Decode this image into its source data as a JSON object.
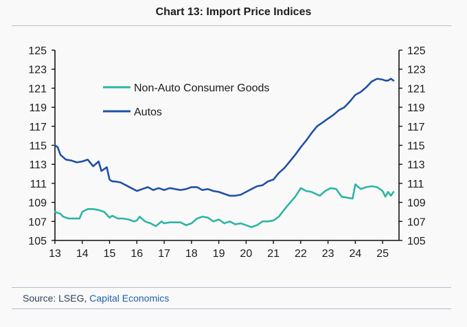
{
  "chart_data": {
    "type": "line",
    "title": "Chart 13: Import Price Indices",
    "xlabel": "",
    "ylabel": "",
    "x_ticks": [
      "13",
      "14",
      "15",
      "16",
      "17",
      "18",
      "19",
      "20",
      "21",
      "22",
      "23",
      "24",
      "25"
    ],
    "xlim": [
      2013.0,
      2025.6
    ],
    "ylim": [
      105,
      125
    ],
    "y_ticks": [
      105,
      107,
      109,
      111,
      113,
      115,
      117,
      119,
      121,
      123,
      125
    ],
    "legend_position": "top-left",
    "series": [
      {
        "name": "Non-Auto Consumer Goods",
        "color": "#2bb5a3",
        "x": [
          2013.0,
          2013.1,
          2013.2,
          2013.3,
          2013.5,
          2013.7,
          2013.9,
          2014.0,
          2014.2,
          2014.4,
          2014.6,
          2014.8,
          2015.0,
          2015.1,
          2015.3,
          2015.5,
          2015.7,
          2015.9,
          2016.0,
          2016.1,
          2016.3,
          2016.5,
          2016.7,
          2016.9,
          2017.0,
          2017.2,
          2017.4,
          2017.6,
          2017.8,
          2018.0,
          2018.2,
          2018.4,
          2018.6,
          2018.8,
          2019.0,
          2019.2,
          2019.4,
          2019.6,
          2019.8,
          2020.0,
          2020.2,
          2020.4,
          2020.6,
          2020.8,
          2021.0,
          2021.2,
          2021.5,
          2021.8,
          2022.0,
          2022.2,
          2022.4,
          2022.7,
          2022.9,
          2023.1,
          2023.3,
          2023.5,
          2023.7,
          2023.9,
          2024.0,
          2024.2,
          2024.4,
          2024.6,
          2024.8,
          2025.0,
          2025.1,
          2025.2,
          2025.3,
          2025.4
        ],
        "values": [
          108.0,
          107.9,
          107.8,
          107.5,
          107.3,
          107.3,
          107.3,
          108.0,
          108.3,
          108.3,
          108.2,
          108.0,
          107.4,
          107.6,
          107.3,
          107.3,
          107.2,
          107.0,
          107.1,
          107.5,
          107.0,
          106.8,
          106.5,
          107.0,
          106.8,
          106.9,
          106.9,
          106.9,
          106.6,
          106.8,
          107.3,
          107.5,
          107.4,
          107.0,
          107.2,
          106.8,
          107.0,
          106.7,
          106.8,
          106.6,
          106.4,
          106.6,
          107.0,
          107.0,
          107.1,
          107.5,
          108.6,
          109.6,
          110.5,
          110.2,
          110.1,
          109.7,
          110.2,
          110.5,
          110.4,
          109.6,
          109.5,
          109.4,
          110.9,
          110.4,
          110.6,
          110.7,
          110.6,
          110.2,
          109.6,
          110.1,
          109.7,
          110.1
        ]
      },
      {
        "name": "Autos",
        "color": "#1f4fa6",
        "x": [
          2013.0,
          2013.1,
          2013.2,
          2013.4,
          2013.6,
          2013.8,
          2014.0,
          2014.2,
          2014.4,
          2014.6,
          2014.7,
          2014.9,
          2015.0,
          2015.1,
          2015.2,
          2015.4,
          2015.6,
          2015.8,
          2016.0,
          2016.2,
          2016.4,
          2016.6,
          2016.8,
          2017.0,
          2017.2,
          2017.4,
          2017.6,
          2017.8,
          2018.0,
          2018.2,
          2018.4,
          2018.6,
          2018.8,
          2019.0,
          2019.2,
          2019.4,
          2019.6,
          2019.8,
          2020.0,
          2020.2,
          2020.4,
          2020.6,
          2020.8,
          2021.0,
          2021.2,
          2021.4,
          2021.6,
          2021.8,
          2022.0,
          2022.2,
          2022.4,
          2022.6,
          2022.8,
          2023.0,
          2023.2,
          2023.4,
          2023.6,
          2023.8,
          2024.0,
          2024.2,
          2024.4,
          2024.6,
          2024.8,
          2025.0,
          2025.1,
          2025.2,
          2025.3,
          2025.4
        ],
        "values": [
          115.0,
          114.8,
          114.0,
          113.5,
          113.4,
          113.2,
          113.3,
          113.5,
          112.8,
          113.3,
          112.3,
          112.7,
          111.4,
          111.2,
          111.2,
          111.1,
          110.8,
          110.5,
          110.2,
          110.4,
          110.6,
          110.3,
          110.5,
          110.3,
          110.5,
          110.4,
          110.3,
          110.4,
          110.6,
          110.6,
          110.3,
          110.4,
          110.2,
          110.1,
          109.9,
          109.7,
          109.7,
          109.8,
          110.1,
          110.4,
          110.7,
          110.8,
          111.2,
          111.4,
          112.1,
          112.6,
          113.3,
          114.0,
          114.8,
          115.5,
          116.3,
          117.0,
          117.4,
          117.8,
          118.2,
          118.7,
          119.0,
          119.6,
          120.3,
          120.6,
          121.1,
          121.7,
          122.0,
          121.9,
          121.8,
          121.8,
          122.0,
          121.8
        ]
      }
    ]
  },
  "source": {
    "prefix": "Source: LSEG, ",
    "link_text": "Capital Economics"
  }
}
